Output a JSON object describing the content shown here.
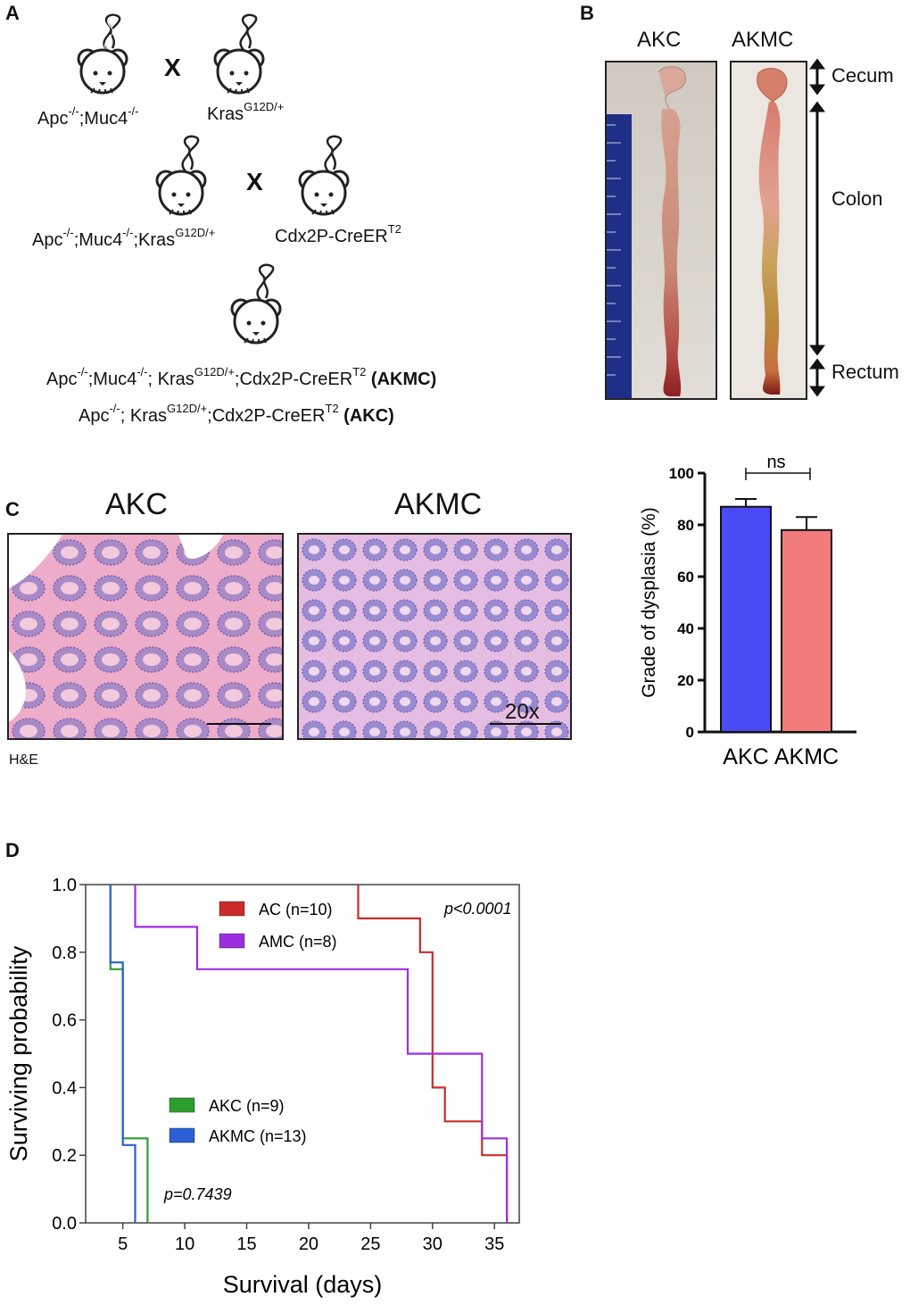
{
  "panel_a": {
    "label": "A",
    "cross1": {
      "left_genotype": "Apc<sup>-/-</sup>;Muc4<sup>-/-</sup>",
      "right_genotype": "Kras<sup>G12D/+</sup>",
      "symbol": "X"
    },
    "cross2": {
      "left_genotype": "Apc<sup>-/-</sup>;Muc4<sup>-/-</sup>;Kras<sup>G12D/+</sup>",
      "right_genotype": "Cdx2P-CreER<sup>T2</sup>",
      "symbol": "X"
    },
    "result_line1": "Apc<sup>-/-</sup>;Muc4<sup>-/-</sup>; Kras<sup>G12D/+</sup>;Cdx2P-CreER<sup>T2</sup> <b>(AKMC)</b>",
    "result_line2": "Apc<sup>-/-</sup>; Kras<sup>G12D/+</sup>;Cdx2P-CreER<sup>T2</sup> <b>(AKC)</b>"
  },
  "panel_b": {
    "label": "B",
    "left_title": "AKC",
    "right_title": "AKMC",
    "regions": [
      "Cecum",
      "Colon",
      "Rectum"
    ]
  },
  "panel_c": {
    "label": "C",
    "left_title": "AKC",
    "right_title": "AKMC",
    "stain_label": "H&E",
    "magnification": "20x"
  },
  "panel_d": {
    "label": "D"
  },
  "chart_data": [
    {
      "type": "bar",
      "categories": [
        "AKC",
        "AKMC"
      ],
      "values": [
        87,
        78
      ],
      "errors": [
        3,
        5
      ],
      "colors": [
        "#4b4bf5",
        "#f17a7a"
      ],
      "ylabel": "Grade of dysplasia (%)",
      "ylim": [
        0,
        100
      ],
      "yticks": [
        0,
        20,
        40,
        60,
        80,
        100
      ],
      "significance": "ns"
    },
    {
      "type": "line",
      "step": true,
      "xlabel": "Survival (days)",
      "ylabel": "Surviving probability",
      "xlim": [
        2,
        37
      ],
      "ylim": [
        0,
        1.0
      ],
      "xticks": [
        5,
        10,
        15,
        20,
        25,
        30,
        35
      ],
      "yticks": [
        "0.0",
        "0.2",
        "0.4",
        "0.6",
        "0.8",
        "1.0"
      ],
      "series": [
        {
          "name": "AC (n=10)",
          "color": "#cc2b2b",
          "points": [
            [
              24,
              1.0
            ],
            [
              24,
              0.9
            ],
            [
              29,
              0.9
            ],
            [
              29,
              0.8
            ],
            [
              30,
              0.8
            ],
            [
              30,
              0.4
            ],
            [
              31,
              0.4
            ],
            [
              31,
              0.3
            ],
            [
              34,
              0.3
            ],
            [
              34,
              0.2
            ],
            [
              36,
              0.2
            ],
            [
              36,
              0
            ]
          ]
        },
        {
          "name": "AMC (n=8)",
          "color": "#9b2fe0",
          "points": [
            [
              6,
              1.0
            ],
            [
              6,
              0.875
            ],
            [
              11,
              0.875
            ],
            [
              11,
              0.75
            ],
            [
              28,
              0.75
            ],
            [
              28,
              0.5
            ],
            [
              34,
              0.5
            ],
            [
              34,
              0.25
            ],
            [
              36,
              0.25
            ],
            [
              36,
              0
            ]
          ]
        },
        {
          "name": "AKC (n=9)",
          "color": "#2e9e2e",
          "points": [
            [
              4,
              1.0
            ],
            [
              4,
              0.75
            ],
            [
              5,
              0.75
            ],
            [
              5,
              0.25
            ],
            [
              7,
              0.25
            ],
            [
              7,
              0
            ]
          ]
        },
        {
          "name": "AKMC (n=13)",
          "color": "#2b5fd6",
          "points": [
            [
              4,
              1.0
            ],
            [
              4,
              0.77
            ],
            [
              5,
              0.77
            ],
            [
              5,
              0.23
            ],
            [
              6,
              0.23
            ],
            [
              6,
              0
            ]
          ]
        }
      ],
      "annotations": [
        "p<0.0001",
        "p=0.7439"
      ]
    }
  ]
}
